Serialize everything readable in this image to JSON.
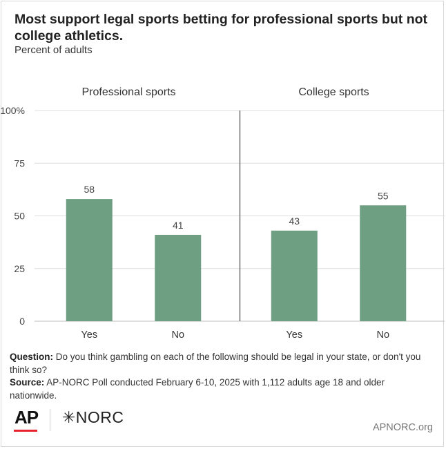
{
  "title": "Most support legal sports betting for professional sports but not college athletics.",
  "subtitle": "Percent of adults",
  "chart_data": {
    "type": "bar",
    "ylim": [
      0,
      100
    ],
    "yticks": [
      "0",
      "25",
      "50",
      "75",
      "100%"
    ],
    "ytick_values": [
      0,
      25,
      50,
      75,
      100
    ],
    "grid": true,
    "bar_color": "#6e9f82",
    "panels": [
      {
        "title": "Professional sports",
        "categories": [
          "Yes",
          "No"
        ],
        "values": [
          58,
          41
        ]
      },
      {
        "title": "College sports",
        "categories": [
          "Yes",
          "No"
        ],
        "values": [
          43,
          55
        ]
      }
    ]
  },
  "notes": {
    "question_label": "Question:",
    "question_text": " Do you think gambling on each of the following should be legal in your state, or don't you think so?",
    "source_label": "Source:",
    "source_text": " AP-NORC Poll conducted February 6-10, 2025 with 1,112 adults age 18 and older nationwide."
  },
  "footer": {
    "ap_logo": "AP",
    "norc_logo": "✳NORC",
    "site": "APNORC.org",
    "accent_color": "#e8222d"
  }
}
